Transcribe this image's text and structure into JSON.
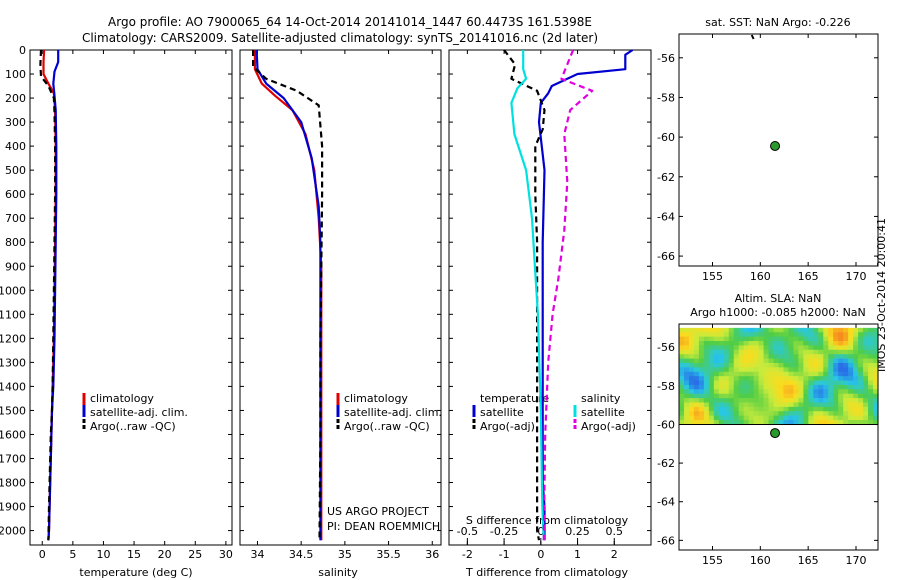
{
  "header": {
    "title_line1": "Argo profile: AO 7900065_64 14-Oct-2014 20141014_1447 60.4473S 161.5398E",
    "title_line2": "Climatology: CARS2009. Satellite-adjusted climatology: synTS_20141016.nc (2d later)"
  },
  "credit": "IMOS 23-Oct-2014 20:00:41",
  "colors": {
    "climatology": "#e00000",
    "satellite": "#0000d0",
    "argo": "#000000",
    "satellite_salinity": "#00e0e0",
    "argo_salinity_adj": "#e000e0",
    "argo_marker": "#008000"
  },
  "chart_data": [
    {
      "id": "temperature",
      "type": "line",
      "xlabel": "temperature (deg C)",
      "xlim": [
        -2,
        31
      ],
      "xticks": [
        0,
        5,
        10,
        15,
        20,
        25,
        30
      ],
      "ylim": [
        2060,
        0
      ],
      "yticks": [
        0,
        100,
        200,
        300,
        400,
        500,
        600,
        700,
        800,
        900,
        1000,
        1100,
        1200,
        1300,
        1400,
        1500,
        1600,
        1700,
        1800,
        1900,
        2000
      ],
      "legend": [
        "climatology",
        "satellite-adj. clim.",
        "Argo(..raw -QC)"
      ],
      "series": [
        {
          "name": "climatology",
          "style": "solid",
          "color": "#e00000",
          "x": [
            0.3,
            0.2,
            0.2,
            1.0,
            1.9,
            2.1,
            2.2,
            2.2,
            2.1,
            2.0,
            1.9,
            1.8,
            1.7,
            1.6,
            1.5,
            1.4,
            1.3,
            1.2,
            1.1,
            1.0
          ],
          "y": [
            0,
            50,
            100,
            140,
            180,
            250,
            400,
            600,
            800,
            1000,
            1200,
            1300,
            1400,
            1500,
            1600,
            1700,
            1800,
            1900,
            2000,
            2040
          ]
        },
        {
          "name": "satellite-adj. clim.",
          "style": "solid",
          "color": "#0000d0",
          "x": [
            2.6,
            2.6,
            2.0,
            1.8,
            2.0,
            2.2,
            2.3,
            2.3,
            2.2,
            2.1,
            2.0,
            1.8,
            1.6,
            1.5,
            1.4,
            1.3,
            1.2,
            1.1,
            1.0
          ],
          "y": [
            0,
            50,
            90,
            140,
            190,
            250,
            400,
            600,
            800,
            1000,
            1200,
            1400,
            1500,
            1600,
            1700,
            1800,
            1900,
            2000,
            2040
          ]
        },
        {
          "name": "Argo(..raw -QC)",
          "style": "dashed",
          "color": "#000000",
          "x": [
            -0.2,
            -0.3,
            -0.2,
            1.0,
            1.9,
            2.0,
            2.1,
            2.1,
            2.0,
            1.9,
            1.8,
            1.7,
            1.6,
            1.4,
            1.3,
            1.2,
            1.1,
            1.0
          ],
          "y": [
            0,
            60,
            110,
            150,
            200,
            260,
            400,
            600,
            800,
            1000,
            1200,
            1400,
            1500,
            1600,
            1700,
            1800,
            1900,
            2040
          ]
        }
      ]
    },
    {
      "id": "salinity",
      "type": "line",
      "xlabel": "salinity",
      "xlim": [
        33.8,
        36.1
      ],
      "xticks": [
        34,
        34.5,
        35,
        35.5,
        36
      ],
      "ylim": [
        2060,
        0
      ],
      "legend": [
        "climatology",
        "satellite-adj. clim.",
        "Argo(..raw -QC)"
      ],
      "annotation_line1": "US ARGO PROJECT",
      "annotation_line2": "PI: DEAN ROEMMICH",
      "series": [
        {
          "name": "climatology",
          "style": "solid",
          "color": "#e00000",
          "x": [
            33.97,
            33.97,
            34.05,
            34.2,
            34.4,
            34.55,
            34.65,
            34.7,
            34.73,
            34.73,
            34.73,
            34.73
          ],
          "y": [
            0,
            80,
            140,
            190,
            250,
            350,
            500,
            700,
            900,
            1100,
            1500,
            2040
          ]
        },
        {
          "name": "satellite-adj. clim.",
          "style": "solid",
          "color": "#0000d0",
          "x": [
            33.99,
            34.0,
            34.1,
            34.3,
            34.5,
            34.62,
            34.7,
            34.72,
            34.72,
            34.72,
            34.72
          ],
          "y": [
            0,
            80,
            140,
            200,
            300,
            450,
            650,
            800,
            1000,
            1500,
            2040
          ]
        },
        {
          "name": "Argo(..raw -QC)",
          "style": "dashed",
          "color": "#000000",
          "x": [
            33.95,
            33.95,
            34.1,
            34.45,
            34.7,
            34.74,
            34.74,
            34.73,
            34.72,
            34.72,
            34.71
          ],
          "y": [
            0,
            70,
            120,
            170,
            230,
            400,
            600,
            900,
            1200,
            1600,
            2040
          ]
        }
      ]
    },
    {
      "id": "difference",
      "type": "line",
      "xlabel": "T difference from climatology",
      "xlim": [
        -2.5,
        3.0
      ],
      "xticks": [
        -2,
        -1,
        0,
        1,
        2
      ],
      "top_axis_label": "S difference from climatology",
      "top_xticks": [
        -0.5,
        -0.25,
        0,
        0.25,
        0.5
      ],
      "ylim": [
        2060,
        0
      ],
      "legend_temperature_title": "temperature",
      "legend_salinity_title": "salinity",
      "legend": [
        "satellite",
        "Argo(-adj)",
        "satellite",
        "Argo(-adj)"
      ],
      "series": [
        {
          "name": "satellite (temperature)",
          "style": "solid",
          "color": "#0000d0",
          "x": [
            2.5,
            2.3,
            2.3,
            1.0,
            0.3,
            0.2,
            0.0,
            -0.05,
            0.1,
            0.05,
            0.05,
            0.05,
            0.05,
            0.05,
            0.1,
            0.1
          ],
          "y": [
            0,
            20,
            80,
            100,
            150,
            180,
            220,
            300,
            500,
            800,
            1000,
            1300,
            1500,
            1800,
            1900,
            2040
          ]
        },
        {
          "name": "Argo(-adj) (temperature)",
          "style": "dashed",
          "color": "#000000",
          "x": [
            -1.0,
            -0.7,
            -0.8,
            -0.1,
            0.1,
            0.05,
            -0.15,
            -0.15,
            -0.1,
            -0.1,
            -0.1,
            -0.1,
            -0.1,
            -0.1,
            -0.05
          ],
          "y": [
            0,
            60,
            120,
            170,
            250,
            330,
            400,
            600,
            800,
            1000,
            1300,
            1500,
            1800,
            2000,
            2040
          ]
        },
        {
          "name": "satellite (salinity)",
          "style": "solid",
          "color": "#00e0e0",
          "x": [
            -0.12,
            -0.12,
            -0.1,
            -0.16,
            -0.2,
            -0.18,
            -0.1,
            -0.06,
            -0.04,
            -0.02,
            0.0,
            0.01,
            0.02
          ],
          "y": [
            0,
            80,
            120,
            160,
            220,
            350,
            500,
            700,
            900,
            1100,
            1500,
            1900,
            2040
          ]
        },
        {
          "name": "Argo(-adj) (salinity)",
          "style": "dashed",
          "color": "#e000e0",
          "x": [
            0.22,
            0.18,
            0.14,
            0.35,
            0.2,
            0.16,
            0.18,
            0.16,
            0.12,
            0.08,
            0.05,
            0.03,
            0.02
          ],
          "y": [
            0,
            60,
            120,
            170,
            250,
            350,
            550,
            750,
            950,
            1100,
            1300,
            1600,
            2040
          ]
        }
      ]
    },
    {
      "id": "sst_map",
      "type": "scatter",
      "title": "sat. SST: NaN Argo: -0.226",
      "xlim": [
        151.5,
        172.3
      ],
      "xticks": [
        155,
        160,
        165,
        170
      ],
      "ylim": [
        -66.5,
        -54.8
      ],
      "yticks": [
        -56,
        -58,
        -60,
        -62,
        -64,
        -66
      ],
      "argo_position": {
        "lon": 161.5398,
        "lat": -60.4473
      }
    },
    {
      "id": "sla_map",
      "type": "heatmap",
      "title_line1": "Altim. SLA: NaN",
      "title_line2": "Argo h1000: -0.085 h2000: NaN",
      "xlim": [
        151.5,
        172.3
      ],
      "xticks": [
        155,
        160,
        165,
        170
      ],
      "ylim": [
        -66.5,
        -54.8
      ],
      "yticks": [
        -56,
        -58,
        -60,
        -62,
        -64,
        -66
      ],
      "data_lat_range": [
        -60,
        -55
      ],
      "argo_position": {
        "lon": 161.5398,
        "lat": -60.4473
      }
    }
  ]
}
